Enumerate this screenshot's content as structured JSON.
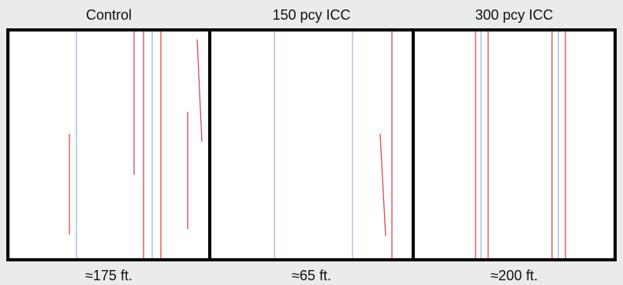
{
  "panels": [
    {
      "title": "Control",
      "label": "≈175 ft."
    },
    {
      "title": "150 pcy ICC",
      "label": "≈65 ft."
    },
    {
      "title": "300 pcy ICC",
      "label": "≈200 ft."
    }
  ]
}
